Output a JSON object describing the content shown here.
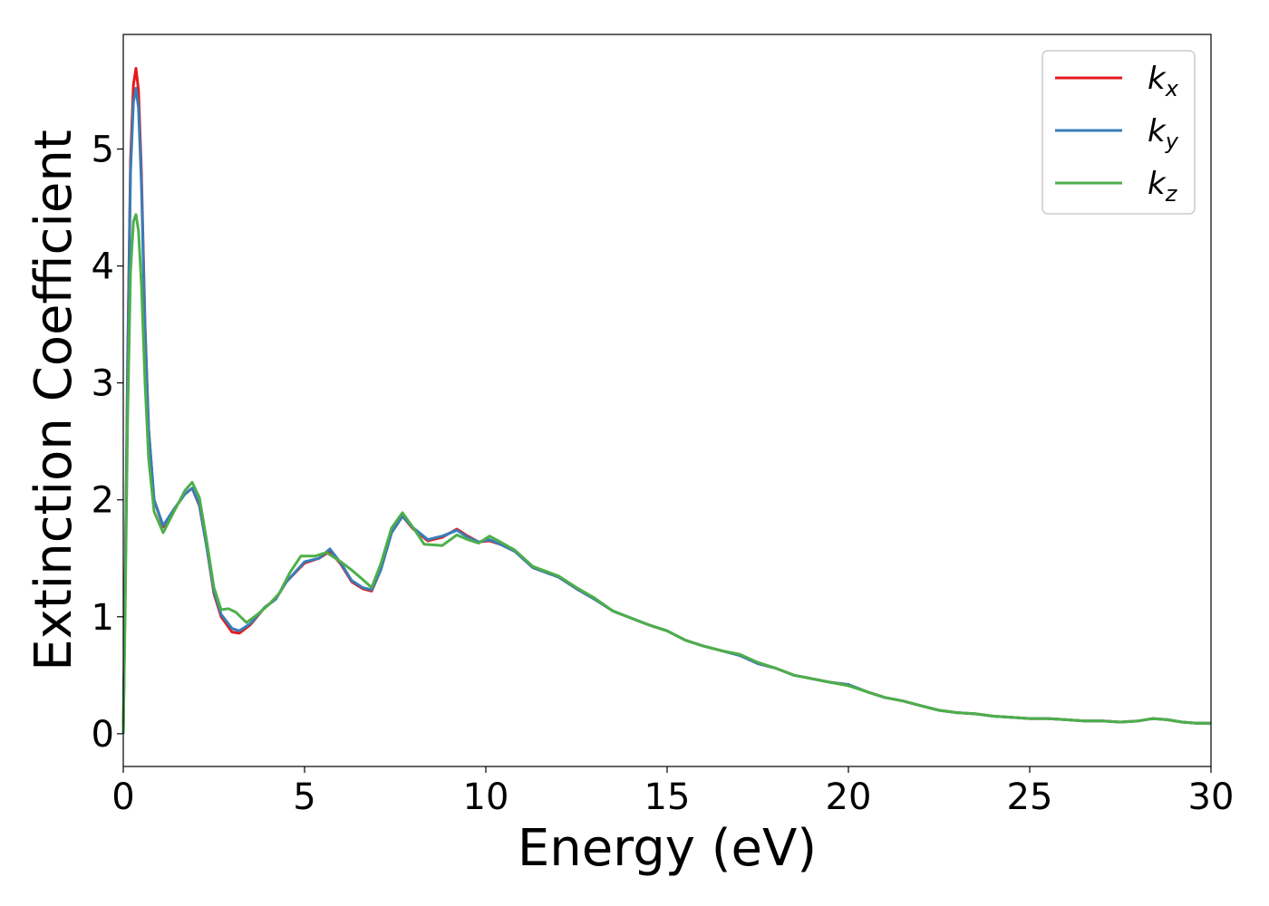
{
  "chart_data": {
    "type": "line",
    "title": "",
    "xlabel": "Energy (eV)",
    "ylabel": "Extinction Coefficient",
    "xlim": [
      0,
      30
    ],
    "ylim": [
      -0.28,
      5.98
    ],
    "xticks": [
      0,
      5,
      10,
      15,
      20,
      25,
      30
    ],
    "yticks": [
      0,
      1,
      2,
      3,
      4,
      5
    ],
    "grid": false,
    "legend_placement": "top-right",
    "series": [
      {
        "name": "k",
        "subscript": "x",
        "color": "#e41a1c",
        "points": [
          [
            0,
            0
          ],
          [
            0.05,
            1.2
          ],
          [
            0.12,
            3.2
          ],
          [
            0.2,
            4.9
          ],
          [
            0.28,
            5.55
          ],
          [
            0.35,
            5.69
          ],
          [
            0.42,
            5.5
          ],
          [
            0.5,
            4.8
          ],
          [
            0.6,
            3.5
          ],
          [
            0.7,
            2.6
          ],
          [
            0.85,
            2.0
          ],
          [
            1.1,
            1.77
          ],
          [
            1.4,
            1.92
          ],
          [
            1.7,
            2.05
          ],
          [
            1.9,
            2.1
          ],
          [
            2.1,
            1.95
          ],
          [
            2.3,
            1.6
          ],
          [
            2.5,
            1.2
          ],
          [
            2.7,
            1.0
          ],
          [
            3.0,
            0.87
          ],
          [
            3.2,
            0.86
          ],
          [
            3.5,
            0.93
          ],
          [
            3.9,
            1.08
          ],
          [
            4.2,
            1.15
          ],
          [
            4.5,
            1.3
          ],
          [
            5.0,
            1.46
          ],
          [
            5.4,
            1.5
          ],
          [
            5.7,
            1.56
          ],
          [
            6.0,
            1.45
          ],
          [
            6.3,
            1.3
          ],
          [
            6.6,
            1.24
          ],
          [
            6.85,
            1.22
          ],
          [
            7.1,
            1.4
          ],
          [
            7.4,
            1.72
          ],
          [
            7.7,
            1.86
          ],
          [
            8.0,
            1.75
          ],
          [
            8.4,
            1.65
          ],
          [
            8.8,
            1.68
          ],
          [
            9.2,
            1.75
          ],
          [
            9.5,
            1.69
          ],
          [
            9.8,
            1.64
          ],
          [
            10.1,
            1.65
          ],
          [
            10.4,
            1.62
          ],
          [
            10.8,
            1.56
          ],
          [
            11.3,
            1.42
          ],
          [
            12.0,
            1.34
          ],
          [
            12.5,
            1.24
          ],
          [
            13.0,
            1.15
          ],
          [
            13.5,
            1.05
          ],
          [
            14.0,
            0.99
          ],
          [
            14.5,
            0.93
          ],
          [
            15.0,
            0.88
          ],
          [
            15.5,
            0.8
          ],
          [
            16.0,
            0.75
          ],
          [
            16.5,
            0.71
          ],
          [
            17.0,
            0.67
          ],
          [
            17.5,
            0.6
          ],
          [
            18.0,
            0.56
          ],
          [
            18.5,
            0.5
          ],
          [
            19.0,
            0.47
          ],
          [
            19.5,
            0.44
          ],
          [
            20.0,
            0.42
          ],
          [
            20.5,
            0.36
          ],
          [
            21.0,
            0.31
          ],
          [
            21.5,
            0.28
          ],
          [
            22.0,
            0.24
          ],
          [
            22.5,
            0.2
          ],
          [
            23.0,
            0.18
          ],
          [
            23.5,
            0.17
          ],
          [
            24.0,
            0.15
          ],
          [
            24.5,
            0.14
          ],
          [
            25.0,
            0.13
          ],
          [
            25.5,
            0.13
          ],
          [
            26.0,
            0.12
          ],
          [
            26.5,
            0.11
          ],
          [
            27.0,
            0.11
          ],
          [
            27.5,
            0.1
          ],
          [
            28.0,
            0.11
          ],
          [
            28.4,
            0.13
          ],
          [
            28.8,
            0.12
          ],
          [
            29.2,
            0.1
          ],
          [
            29.6,
            0.09
          ],
          [
            30.0,
            0.09
          ]
        ]
      },
      {
        "name": "k",
        "subscript": "y",
        "color": "#377eb8",
        "points": [
          [
            0,
            0
          ],
          [
            0.05,
            1.15
          ],
          [
            0.12,
            3.1
          ],
          [
            0.2,
            4.8
          ],
          [
            0.28,
            5.4
          ],
          [
            0.35,
            5.52
          ],
          [
            0.42,
            5.35
          ],
          [
            0.5,
            4.7
          ],
          [
            0.6,
            3.45
          ],
          [
            0.7,
            2.6
          ],
          [
            0.85,
            2.0
          ],
          [
            1.1,
            1.78
          ],
          [
            1.4,
            1.92
          ],
          [
            1.7,
            2.05
          ],
          [
            1.9,
            2.1
          ],
          [
            2.1,
            1.96
          ],
          [
            2.3,
            1.6
          ],
          [
            2.5,
            1.22
          ],
          [
            2.7,
            1.02
          ],
          [
            3.0,
            0.9
          ],
          [
            3.2,
            0.88
          ],
          [
            3.5,
            0.94
          ],
          [
            3.9,
            1.08
          ],
          [
            4.2,
            1.15
          ],
          [
            4.5,
            1.3
          ],
          [
            5.0,
            1.47
          ],
          [
            5.4,
            1.5
          ],
          [
            5.7,
            1.58
          ],
          [
            6.0,
            1.46
          ],
          [
            6.3,
            1.31
          ],
          [
            6.6,
            1.25
          ],
          [
            6.85,
            1.23
          ],
          [
            7.1,
            1.4
          ],
          [
            7.4,
            1.72
          ],
          [
            7.7,
            1.86
          ],
          [
            8.0,
            1.76
          ],
          [
            8.4,
            1.66
          ],
          [
            8.8,
            1.69
          ],
          [
            9.2,
            1.74
          ],
          [
            9.5,
            1.68
          ],
          [
            9.8,
            1.64
          ],
          [
            10.1,
            1.66
          ],
          [
            10.4,
            1.62
          ],
          [
            10.8,
            1.56
          ],
          [
            11.3,
            1.42
          ],
          [
            12.0,
            1.34
          ],
          [
            12.5,
            1.24
          ],
          [
            13.0,
            1.15
          ],
          [
            13.5,
            1.05
          ],
          [
            14.0,
            0.99
          ],
          [
            14.5,
            0.93
          ],
          [
            15.0,
            0.88
          ],
          [
            15.5,
            0.8
          ],
          [
            16.0,
            0.75
          ],
          [
            16.5,
            0.71
          ],
          [
            17.0,
            0.67
          ],
          [
            17.5,
            0.6
          ],
          [
            18.0,
            0.56
          ],
          [
            18.5,
            0.5
          ],
          [
            19.0,
            0.47
          ],
          [
            19.5,
            0.44
          ],
          [
            20.0,
            0.42
          ],
          [
            20.5,
            0.36
          ],
          [
            21.0,
            0.31
          ],
          [
            21.5,
            0.28
          ],
          [
            22.0,
            0.24
          ],
          [
            22.5,
            0.2
          ],
          [
            23.0,
            0.18
          ],
          [
            23.5,
            0.17
          ],
          [
            24.0,
            0.15
          ],
          [
            24.5,
            0.14
          ],
          [
            25.0,
            0.13
          ],
          [
            25.5,
            0.13
          ],
          [
            26.0,
            0.12
          ],
          [
            26.5,
            0.11
          ],
          [
            27.0,
            0.11
          ],
          [
            27.5,
            0.1
          ],
          [
            28.0,
            0.11
          ],
          [
            28.4,
            0.13
          ],
          [
            28.8,
            0.12
          ],
          [
            29.2,
            0.1
          ],
          [
            29.6,
            0.09
          ],
          [
            30.0,
            0.09
          ]
        ]
      },
      {
        "name": "k",
        "subscript": "z",
        "color": "#4daf4a",
        "points": [
          [
            0,
            0
          ],
          [
            0.05,
            1.0
          ],
          [
            0.12,
            2.7
          ],
          [
            0.2,
            3.95
          ],
          [
            0.28,
            4.38
          ],
          [
            0.35,
            4.44
          ],
          [
            0.42,
            4.3
          ],
          [
            0.5,
            3.85
          ],
          [
            0.6,
            3.0
          ],
          [
            0.7,
            2.35
          ],
          [
            0.85,
            1.9
          ],
          [
            1.1,
            1.72
          ],
          [
            1.4,
            1.9
          ],
          [
            1.7,
            2.08
          ],
          [
            1.9,
            2.15
          ],
          [
            2.1,
            2.02
          ],
          [
            2.3,
            1.65
          ],
          [
            2.5,
            1.25
          ],
          [
            2.7,
            1.06
          ],
          [
            2.9,
            1.07
          ],
          [
            3.1,
            1.04
          ],
          [
            3.4,
            0.95
          ],
          [
            3.7,
            1.02
          ],
          [
            4.0,
            1.1
          ],
          [
            4.3,
            1.2
          ],
          [
            4.6,
            1.38
          ],
          [
            4.9,
            1.52
          ],
          [
            5.3,
            1.52
          ],
          [
            5.6,
            1.55
          ],
          [
            6.0,
            1.47
          ],
          [
            6.3,
            1.4
          ],
          [
            6.6,
            1.32
          ],
          [
            6.85,
            1.25
          ],
          [
            7.1,
            1.45
          ],
          [
            7.4,
            1.76
          ],
          [
            7.7,
            1.89
          ],
          [
            8.0,
            1.76
          ],
          [
            8.3,
            1.62
          ],
          [
            8.8,
            1.61
          ],
          [
            9.2,
            1.7
          ],
          [
            9.5,
            1.66
          ],
          [
            9.8,
            1.63
          ],
          [
            10.1,
            1.69
          ],
          [
            10.4,
            1.64
          ],
          [
            10.8,
            1.57
          ],
          [
            11.3,
            1.43
          ],
          [
            12.0,
            1.35
          ],
          [
            12.5,
            1.25
          ],
          [
            13.0,
            1.16
          ],
          [
            13.5,
            1.05
          ],
          [
            14.0,
            0.99
          ],
          [
            14.5,
            0.93
          ],
          [
            15.0,
            0.88
          ],
          [
            15.5,
            0.8
          ],
          [
            16.0,
            0.75
          ],
          [
            16.5,
            0.71
          ],
          [
            17.0,
            0.68
          ],
          [
            17.5,
            0.61
          ],
          [
            18.0,
            0.56
          ],
          [
            18.5,
            0.5
          ],
          [
            19.0,
            0.47
          ],
          [
            19.5,
            0.44
          ],
          [
            20.0,
            0.41
          ],
          [
            20.5,
            0.36
          ],
          [
            21.0,
            0.31
          ],
          [
            21.5,
            0.28
          ],
          [
            22.0,
            0.24
          ],
          [
            22.5,
            0.2
          ],
          [
            23.0,
            0.18
          ],
          [
            23.5,
            0.17
          ],
          [
            24.0,
            0.15
          ],
          [
            24.5,
            0.14
          ],
          [
            25.0,
            0.13
          ],
          [
            25.5,
            0.13
          ],
          [
            26.0,
            0.12
          ],
          [
            26.5,
            0.11
          ],
          [
            27.0,
            0.11
          ],
          [
            27.5,
            0.1
          ],
          [
            28.0,
            0.11
          ],
          [
            28.4,
            0.13
          ],
          [
            28.8,
            0.12
          ],
          [
            29.2,
            0.1
          ],
          [
            29.6,
            0.09
          ],
          [
            30.0,
            0.09
          ]
        ]
      }
    ]
  }
}
